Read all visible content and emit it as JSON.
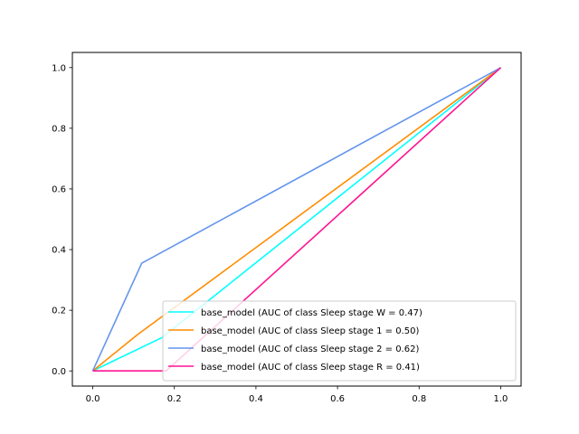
{
  "chart_data": {
    "type": "line",
    "title": "",
    "xlabel": "",
    "ylabel": "",
    "xlim": [
      -0.05,
      1.05
    ],
    "ylim": [
      -0.05,
      1.05
    ],
    "xticks": [
      0.0,
      0.2,
      0.4,
      0.6,
      0.8,
      1.0
    ],
    "yticks": [
      0.0,
      0.2,
      0.4,
      0.6,
      0.8,
      1.0
    ],
    "xtick_labels": [
      "0.0",
      "0.2",
      "0.4",
      "0.6",
      "0.8",
      "1.0"
    ],
    "ytick_labels": [
      "0.0",
      "0.2",
      "0.4",
      "0.6",
      "0.8",
      "1.0"
    ],
    "grid": false,
    "legend_position": "lower-right",
    "series": [
      {
        "name": "base_model (AUC of class Sleep stage W = 0.47)",
        "color": "#00ffff",
        "points": [
          [
            0.0,
            0.0
          ],
          [
            0.17,
            0.11
          ],
          [
            1.0,
            1.0
          ]
        ]
      },
      {
        "name": "base_model (AUC of class Sleep stage 1 = 0.50)",
        "color": "#ff8c00",
        "points": [
          [
            0.0,
            0.0
          ],
          [
            0.11,
            0.12
          ],
          [
            1.0,
            1.0
          ]
        ]
      },
      {
        "name": "base_model (AUC of class Sleep stage 2 = 0.62)",
        "color": "#6495ed",
        "points": [
          [
            0.0,
            0.0
          ],
          [
            0.12,
            0.355
          ],
          [
            1.0,
            1.0
          ]
        ]
      },
      {
        "name": "base_model (AUC of class Sleep stage R = 0.41)",
        "color": "#ff1493",
        "points": [
          [
            0.0,
            0.0
          ],
          [
            0.18,
            0.0
          ],
          [
            1.0,
            1.0
          ]
        ]
      }
    ]
  }
}
